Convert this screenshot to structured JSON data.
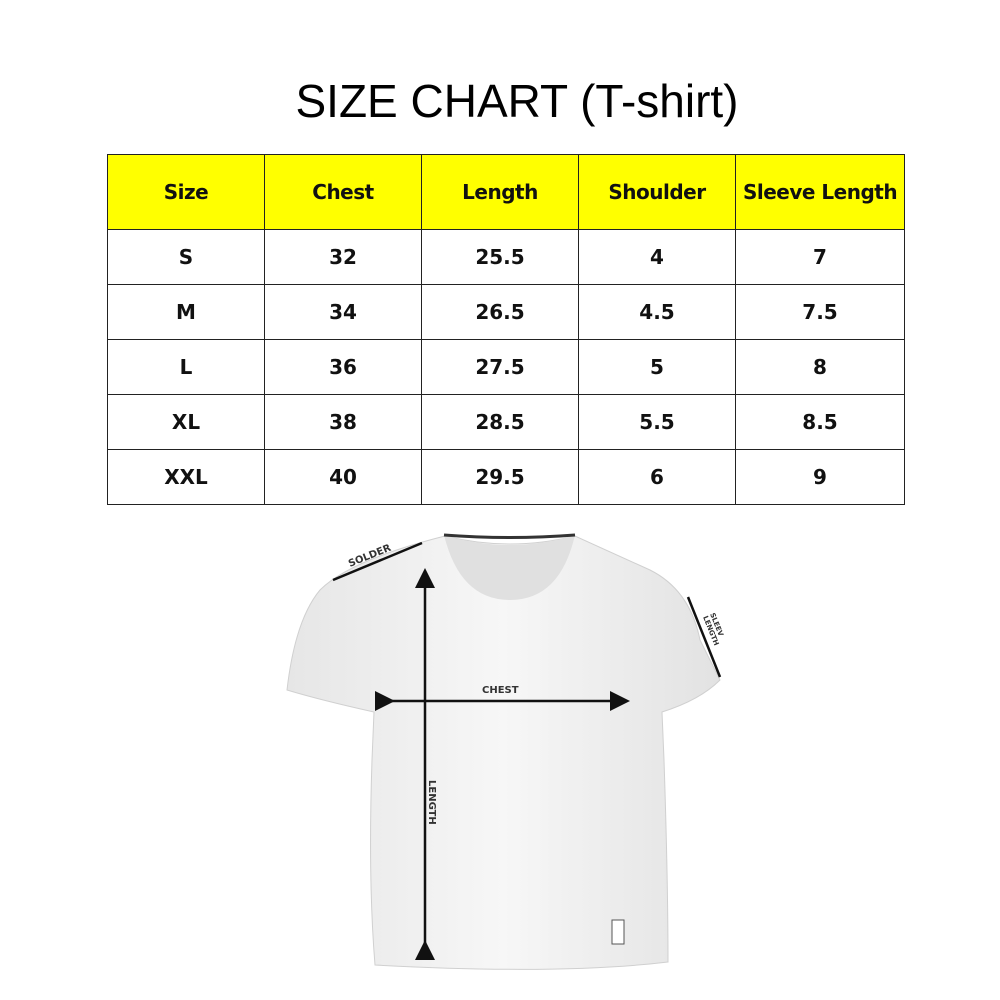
{
  "title": "SIZE CHART (T-shirt)",
  "table": {
    "headers": [
      "Size",
      "Chest",
      "Length",
      "Shoulder",
      "Sleeve Length"
    ],
    "rows": [
      [
        "S",
        "32",
        "25.5",
        "4",
        "7"
      ],
      [
        "M",
        "34",
        "26.5",
        "4.5",
        "7.5"
      ],
      [
        "L",
        "36",
        "27.5",
        "5",
        "8"
      ],
      [
        "XL",
        "38",
        "28.5",
        "5.5",
        "8.5"
      ],
      [
        "XXL",
        "40",
        "29.5",
        "6",
        "9"
      ]
    ]
  },
  "diagram": {
    "labels": {
      "shoulder": "SOLDER",
      "sleeve_line1": "SLEEV",
      "sleeve_line2": "LENGTH",
      "chest": "CHEST",
      "length": "LENGTH"
    }
  },
  "colors": {
    "header_bg": "#ffff00"
  }
}
